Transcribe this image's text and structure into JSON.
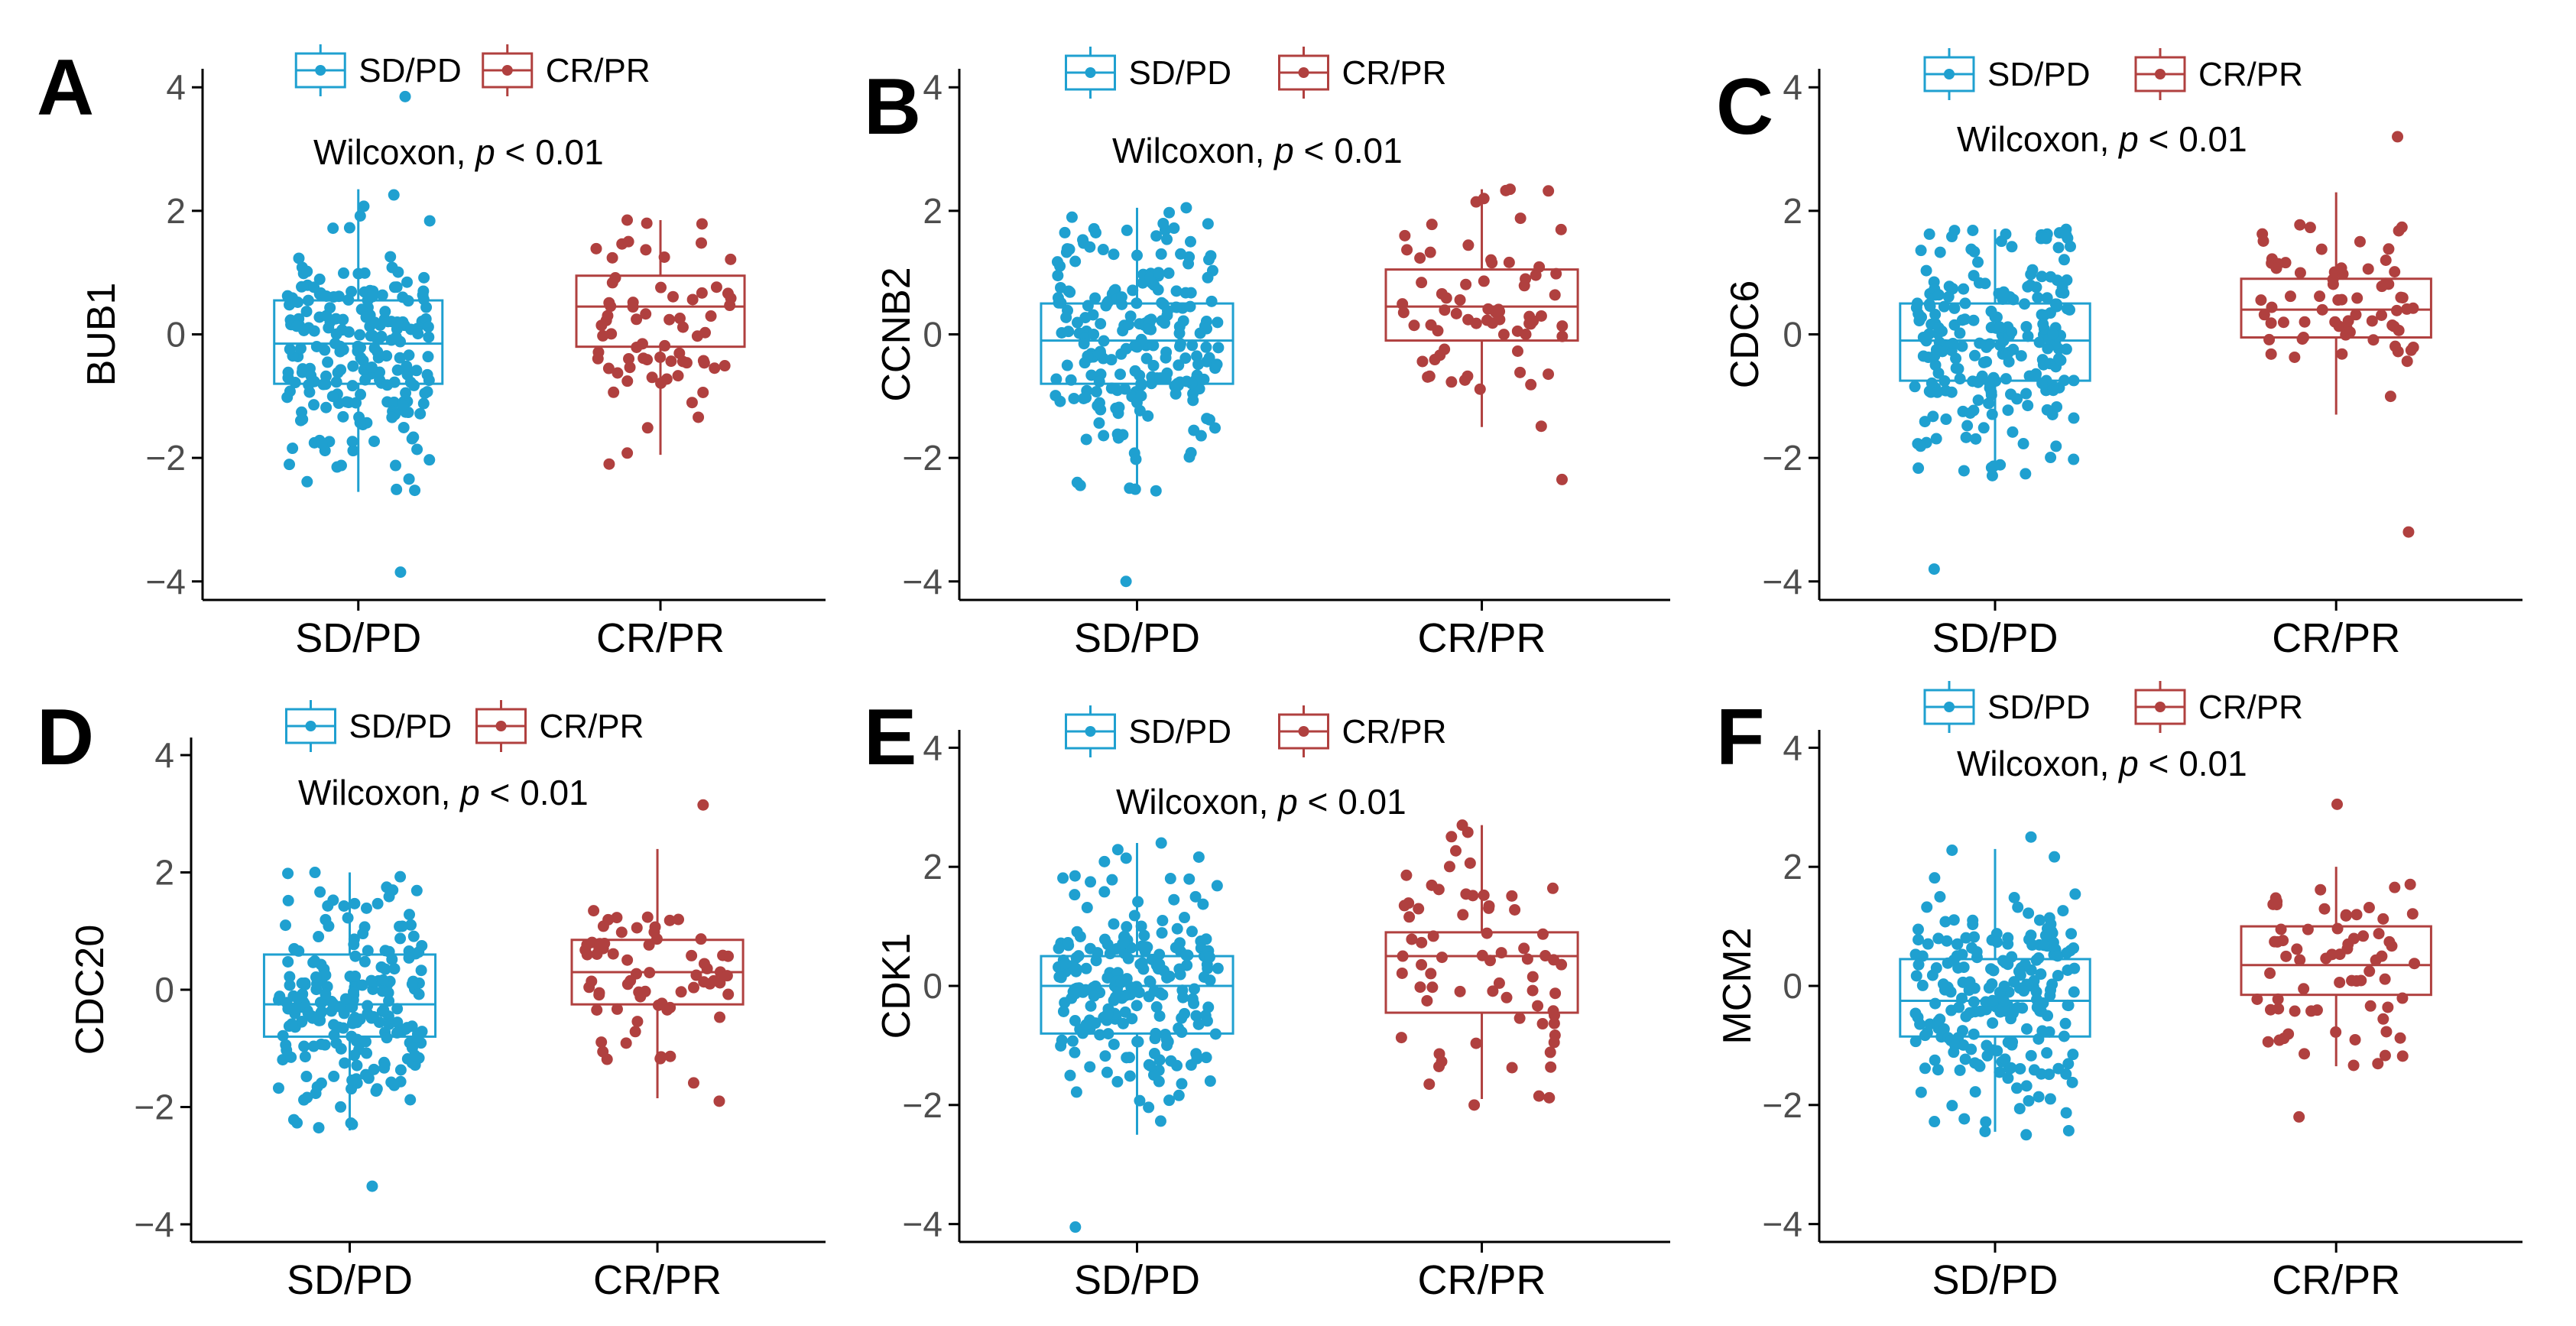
{
  "figure": {
    "title": ""
  },
  "colors": {
    "SD/PD": "#1FA0D0",
    "CR/PR": "#B0403F",
    "axis": "#000000",
    "tick_text": "#4d4d4d"
  },
  "chart_data": [
    {
      "type": "box",
      "panel": "A",
      "ylabel": "BUB1",
      "categories": [
        "SD/PD",
        "CR/PR"
      ],
      "legend": [
        "SD/PD",
        "CR/PR"
      ],
      "legend_position": "top",
      "ylim": [
        -4.3,
        4.3
      ],
      "yticks": [
        -4,
        -2,
        0,
        2,
        4
      ],
      "annotation": {
        "prefix": "Wilcoxon, ",
        "p_symbol": "p",
        "suffix": " < 0.01"
      },
      "series": [
        {
          "name": "SD/PD",
          "n": 220,
          "q1": -0.8,
          "median": -0.15,
          "q3": 0.55,
          "whisker_low": -2.55,
          "whisker_high": 2.35,
          "min": -3.85,
          "max": 3.85
        },
        {
          "name": "CR/PR",
          "n": 70,
          "q1": -0.2,
          "median": 0.45,
          "q3": 0.95,
          "whisker_low": -1.95,
          "whisker_high": 1.85,
          "min": -2.1,
          "max": 1.85
        }
      ]
    },
    {
      "type": "box",
      "panel": "B",
      "ylabel": "CCNB2",
      "categories": [
        "SD/PD",
        "CR/PR"
      ],
      "legend": [
        "SD/PD",
        "CR/PR"
      ],
      "legend_position": "top",
      "ylim": [
        -4.3,
        4.3
      ],
      "yticks": [
        -4,
        -2,
        0,
        2,
        4
      ],
      "annotation": {
        "prefix": "Wilcoxon, ",
        "p_symbol": "p",
        "suffix": " < 0.01"
      },
      "series": [
        {
          "name": "SD/PD",
          "n": 220,
          "q1": -0.8,
          "median": -0.1,
          "q3": 0.5,
          "whisker_low": -2.55,
          "whisker_high": 2.05,
          "min": -4.0,
          "max": 2.05
        },
        {
          "name": "CR/PR",
          "n": 70,
          "q1": -0.1,
          "median": 0.45,
          "q3": 1.05,
          "whisker_low": -1.5,
          "whisker_high": 2.35,
          "min": -2.35,
          "max": 2.35
        }
      ]
    },
    {
      "type": "box",
      "panel": "C",
      "ylabel": "CDC6",
      "categories": [
        "SD/PD",
        "CR/PR"
      ],
      "legend": [
        "SD/PD",
        "CR/PR"
      ],
      "legend_position": "top",
      "ylim": [
        -4.3,
        4.3
      ],
      "yticks": [
        -4,
        -2,
        0,
        2,
        4
      ],
      "annotation": {
        "prefix": "Wilcoxon, ",
        "p_symbol": "p",
        "suffix": " < 0.01"
      },
      "series": [
        {
          "name": "SD/PD",
          "n": 220,
          "q1": -0.75,
          "median": -0.1,
          "q3": 0.5,
          "whisker_low": -2.3,
          "whisker_high": 1.7,
          "min": -3.8,
          "max": 1.7
        },
        {
          "name": "CR/PR",
          "n": 70,
          "q1": -0.05,
          "median": 0.4,
          "q3": 0.9,
          "whisker_low": -1.3,
          "whisker_high": 2.3,
          "min": -3.2,
          "max": 3.2
        }
      ]
    },
    {
      "type": "box",
      "panel": "D",
      "ylabel": "CDC20",
      "categories": [
        "SD/PD",
        "CR/PR"
      ],
      "legend": [
        "SD/PD",
        "CR/PR"
      ],
      "legend_position": "top",
      "ylim": [
        -4.3,
        4.3
      ],
      "yticks": [
        -4,
        -2,
        0,
        2,
        4
      ],
      "annotation": {
        "prefix": "Wilcoxon, ",
        "p_symbol": "p",
        "suffix": " < 0.01"
      },
      "series": [
        {
          "name": "SD/PD",
          "n": 220,
          "q1": -0.8,
          "median": -0.25,
          "q3": 0.6,
          "whisker_low": -2.4,
          "whisker_high": 2.0,
          "min": -3.35,
          "max": 2.0
        },
        {
          "name": "CR/PR",
          "n": 70,
          "q1": -0.25,
          "median": 0.3,
          "q3": 0.85,
          "whisker_low": -1.85,
          "whisker_high": 2.4,
          "min": -1.9,
          "max": 3.15
        }
      ]
    },
    {
      "type": "box",
      "panel": "E",
      "ylabel": "CDK1",
      "categories": [
        "SD/PD",
        "CR/PR"
      ],
      "legend": [
        "SD/PD",
        "CR/PR"
      ],
      "legend_position": "top",
      "ylim": [
        -4.3,
        4.3
      ],
      "yticks": [
        -4,
        -2,
        0,
        2,
        4
      ],
      "annotation": {
        "prefix": "Wilcoxon, ",
        "p_symbol": "p",
        "suffix": " < 0.01"
      },
      "series": [
        {
          "name": "SD/PD",
          "n": 220,
          "q1": -0.8,
          "median": 0.0,
          "q3": 0.5,
          "whisker_low": -2.5,
          "whisker_high": 2.4,
          "min": -4.05,
          "max": 2.4
        },
        {
          "name": "CR/PR",
          "n": 70,
          "q1": -0.45,
          "median": 0.5,
          "q3": 0.9,
          "whisker_low": -1.9,
          "whisker_high": 2.7,
          "min": -2.0,
          "max": 2.7
        }
      ]
    },
    {
      "type": "box",
      "panel": "F",
      "ylabel": "MCM2",
      "categories": [
        "SD/PD",
        "CR/PR"
      ],
      "legend": [
        "SD/PD",
        "CR/PR"
      ],
      "legend_position": "top",
      "ylim": [
        -4.3,
        4.3
      ],
      "yticks": [
        -4,
        -2,
        0,
        2,
        4
      ],
      "annotation": {
        "prefix": "Wilcoxon, ",
        "p_symbol": "p",
        "suffix": " < 0.01"
      },
      "series": [
        {
          "name": "SD/PD",
          "n": 220,
          "q1": -0.85,
          "median": -0.25,
          "q3": 0.45,
          "whisker_low": -2.45,
          "whisker_high": 2.3,
          "min": -2.5,
          "max": 2.5
        },
        {
          "name": "CR/PR",
          "n": 70,
          "q1": -0.15,
          "median": 0.35,
          "q3": 1.0,
          "whisker_low": -1.35,
          "whisker_high": 2.0,
          "min": -2.2,
          "max": 3.05
        }
      ]
    }
  ]
}
